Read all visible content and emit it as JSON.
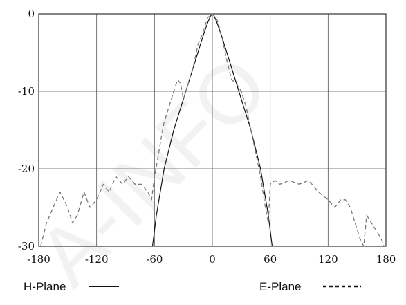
{
  "chart_data": {
    "type": "line",
    "xlim": [
      -180,
      180
    ],
    "ylim": [
      -30,
      0
    ],
    "x_ticks": [
      -180,
      -120,
      -60,
      0,
      60,
      120,
      180
    ],
    "y_ticks": [
      0,
      -10,
      -20,
      -30
    ],
    "x_tick_labels": [
      "-180",
      "-120",
      "-60",
      "0",
      "60",
      "120",
      "180"
    ],
    "y_tick_labels": [
      "0",
      "-10",
      "-20",
      "-30"
    ],
    "extra_gridlines_y": [
      -3
    ],
    "grid": true,
    "legend_placement": "bottom",
    "watermark": "A-INFO",
    "series": [
      {
        "name": "H-Plane",
        "style": "solid",
        "color": "#111111",
        "x": [
          -62,
          -58,
          -50,
          -40,
          -30,
          -20,
          -15,
          -10,
          -5,
          -2,
          0,
          2,
          5,
          10,
          15,
          20,
          30,
          40,
          50,
          58,
          62
        ],
        "y": [
          -30,
          -26,
          -20,
          -15,
          -11,
          -7,
          -5,
          -3,
          -1.2,
          -0.3,
          0,
          -0.3,
          -1.2,
          -3,
          -5,
          -7,
          -11,
          -15,
          -20,
          -26,
          -30
        ]
      },
      {
        "name": "E-Plane",
        "style": "dashed",
        "color": "#777777",
        "x": [
          -178,
          -172,
          -165,
          -158,
          -150,
          -145,
          -140,
          -133,
          -127,
          -120,
          -113,
          -107,
          -100,
          -93,
          -87,
          -80,
          -73,
          -67,
          -63,
          -60,
          -57,
          -53,
          -50,
          -45,
          -40,
          -36,
          -33,
          -30,
          -25,
          -20,
          -15,
          -10,
          -5,
          0,
          5,
          10,
          15,
          20,
          25,
          30,
          35,
          40,
          45,
          50,
          55,
          58,
          60,
          65,
          70,
          80,
          90,
          100,
          110,
          120,
          127,
          133,
          138,
          143,
          148,
          153,
          157,
          160,
          165,
          170,
          175,
          178
        ],
        "y": [
          -30,
          -27,
          -25,
          -23,
          -25,
          -27,
          -26,
          -23,
          -25,
          -24,
          -22,
          -23,
          -21,
          -22,
          -21,
          -22,
          -22,
          -23,
          -24,
          -21,
          -19,
          -16,
          -14,
          -12,
          -10,
          -8.5,
          -9,
          -11,
          -9,
          -7,
          -4,
          -2.5,
          -0.5,
          0,
          -0.8,
          -3,
          -6,
          -8.5,
          -9,
          -10,
          -12,
          -15,
          -18,
          -21,
          -25,
          -27,
          -22,
          -21.5,
          -22,
          -21.5,
          -22,
          -21.5,
          -23,
          -24,
          -25,
          -24,
          -24,
          -25,
          -27,
          -29,
          -30,
          -26,
          -27,
          -28,
          -29,
          -30
        ]
      }
    ]
  }
}
